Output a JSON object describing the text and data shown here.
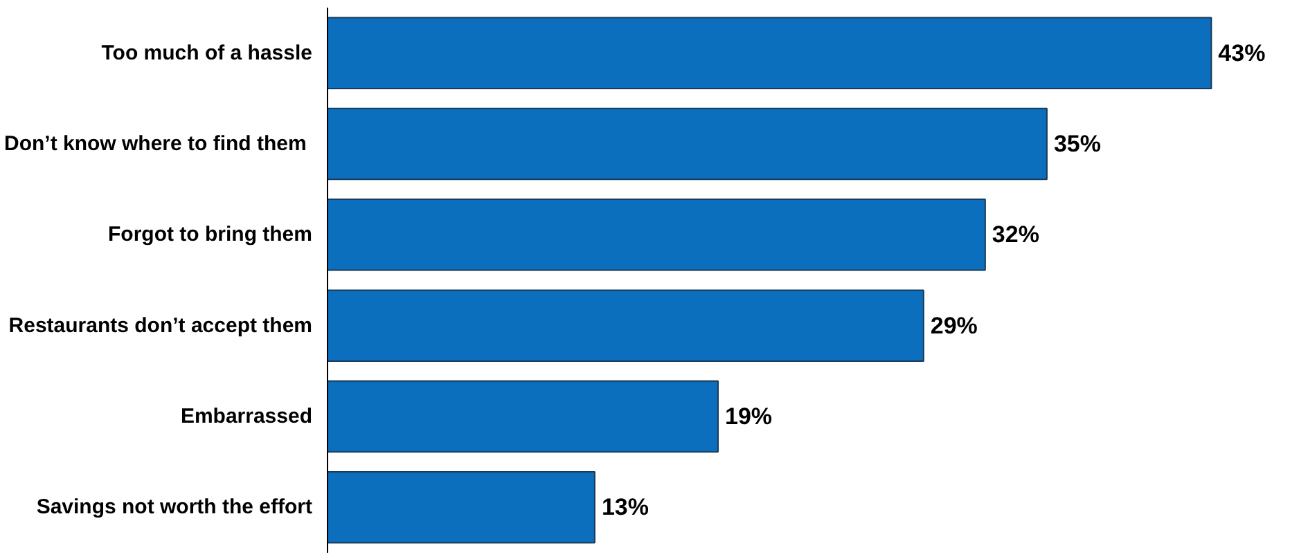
{
  "chart_data": {
    "type": "bar",
    "orientation": "horizontal",
    "categories": [
      "Too much of a hassle",
      "Don’t know where to  find them",
      "Forgot to bring them",
      "Restaurants don’t accept them",
      "Embarrassed",
      "Savings not worth the effort"
    ],
    "values": [
      43,
      35,
      32,
      29,
      19,
      13
    ],
    "value_labels": [
      "43%",
      "35%",
      "32%",
      "29%",
      "19%",
      "13%"
    ],
    "color": "#0b6fbd",
    "grid": false
  }
}
